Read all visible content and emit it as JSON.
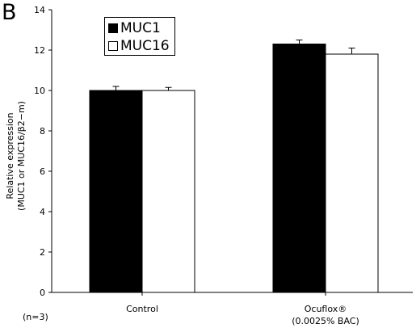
{
  "panel_label": "B",
  "note": "(n=3)",
  "colors": {
    "axis": "#000000",
    "muc1": "#000000",
    "muc16": "#ffffff"
  },
  "chart_data": {
    "type": "bar",
    "categories": [
      [
        "Control"
      ],
      [
        "Ocuflox®",
        "(0.0025% BAC)"
      ]
    ],
    "series": [
      {
        "name": "MUC1",
        "values": [
          10.0,
          12.3
        ],
        "errors": [
          0.2,
          0.2
        ],
        "color": "#000000"
      },
      {
        "name": "MUC16",
        "values": [
          10.0,
          11.8
        ],
        "errors": [
          0.15,
          0.3
        ],
        "color": "#ffffff"
      }
    ],
    "ylabel_lines": [
      "Relative expression",
      "(MUC1 or MUC16/β2−m)"
    ],
    "ylim": [
      0,
      14
    ],
    "yticks": [
      0,
      2,
      4,
      6,
      8,
      10,
      12,
      14
    ],
    "legend": "top-left",
    "grid": false
  }
}
